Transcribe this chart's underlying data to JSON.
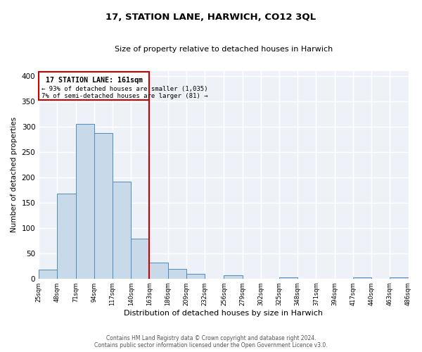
{
  "title": "17, STATION LANE, HARWICH, CO12 3QL",
  "subtitle": "Size of property relative to detached houses in Harwich",
  "xlabel": "Distribution of detached houses by size in Harwich",
  "ylabel": "Number of detached properties",
  "bin_edges": [
    25,
    48,
    71,
    94,
    117,
    140,
    163,
    186,
    209,
    232,
    256,
    279,
    302,
    325,
    348,
    371,
    394,
    417,
    440,
    463,
    486
  ],
  "bin_labels": [
    "25sqm",
    "48sqm",
    "71sqm",
    "94sqm",
    "117sqm",
    "140sqm",
    "163sqm",
    "186sqm",
    "209sqm",
    "232sqm",
    "256sqm",
    "279sqm",
    "302sqm",
    "325sqm",
    "348sqm",
    "371sqm",
    "394sqm",
    "417sqm",
    "440sqm",
    "463sqm",
    "486sqm"
  ],
  "bar_heights": [
    17,
    168,
    305,
    287,
    192,
    79,
    32,
    19,
    10,
    0,
    6,
    0,
    0,
    3,
    0,
    0,
    0,
    2,
    0,
    2
  ],
  "bar_color": "#c8daea",
  "bar_edge_color": "#4d8bbf",
  "vline_color": "#cc0000",
  "vline_x": 163,
  "annotation_title": "17 STATION LANE: 161sqm",
  "annotation_line1": "← 93% of detached houses are smaller (1,035)",
  "annotation_line2": "7% of semi-detached houses are larger (81) →",
  "annotation_box_color": "#cc0000",
  "ylim": [
    0,
    410
  ],
  "yticks": [
    0,
    50,
    100,
    150,
    200,
    250,
    300,
    350,
    400
  ],
  "footer_line1": "Contains HM Land Registry data © Crown copyright and database right 2024.",
  "footer_line2": "Contains public sector information licensed under the Open Government Licence v3.0.",
  "bg_color": "#ffffff",
  "plot_bg_color": "#eef2f8"
}
